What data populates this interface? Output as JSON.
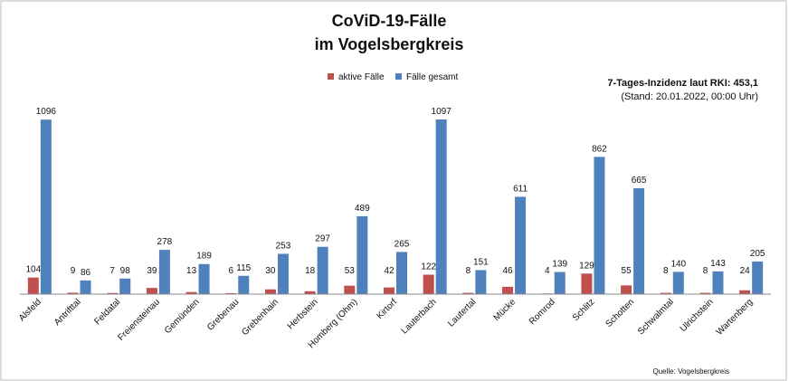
{
  "chart_data": {
    "type": "bar",
    "title": [
      "CoViD-19-Fälle",
      "im Vogelsbergkreis"
    ],
    "annotation": [
      "7-Tages-Inzidenz laut RKI: 453,1",
      "(Stand: 20.01.2022, 00:00 Uhr)"
    ],
    "source": "Quelle: Vogelsbergkreis",
    "legend_position": "top-center",
    "grid": false,
    "ylim": [
      0,
      1100
    ],
    "categories": [
      "Alsfeld",
      "Antrifttal",
      "Feldatal",
      "Freiensteinau",
      "Gemünden",
      "Grebenau",
      "Grebenhain",
      "Herbstein",
      "Homberg (Ohm)",
      "Kirtorf",
      "Lauterbach",
      "Lautertal",
      "Mücke",
      "Romrod",
      "Schlitz",
      "Schotten",
      "Schwalmtal",
      "Ulrichstein",
      "Wartenberg"
    ],
    "series": [
      {
        "name": "aktive Fälle",
        "color": "#c0504d",
        "values": [
          104,
          9,
          7,
          39,
          13,
          6,
          30,
          18,
          53,
          42,
          122,
          8,
          46,
          4,
          129,
          55,
          8,
          8,
          24
        ]
      },
      {
        "name": "Fälle gesamt",
        "color": "#4f81bd",
        "values": [
          1096,
          86,
          98,
          278,
          189,
          115,
          253,
          297,
          489,
          265,
          1097,
          151,
          611,
          139,
          862,
          665,
          140,
          143,
          205
        ]
      }
    ]
  }
}
